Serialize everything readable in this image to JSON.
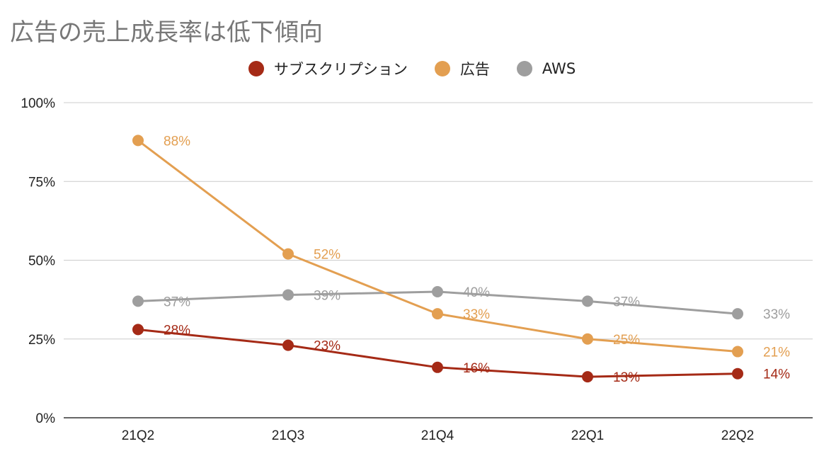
{
  "chart_data": {
    "type": "line",
    "title": "広告の売上成長率は低下傾向",
    "categories": [
      "21Q2",
      "21Q3",
      "21Q4",
      "22Q1",
      "22Q2"
    ],
    "ylim": [
      0,
      100
    ],
    "yticks": [
      "0%",
      "25%",
      "50%",
      "75%",
      "100%"
    ],
    "grid": true,
    "legend_position": "top-center",
    "series": [
      {
        "name": "サブスクリプション",
        "color": "#a52a16",
        "values": [
          28,
          23,
          16,
          13,
          14
        ],
        "labels": [
          "28%",
          "23%",
          "16%",
          "13%",
          "14%"
        ]
      },
      {
        "name": "広告",
        "color": "#e39f51",
        "values": [
          88,
          52,
          33,
          25,
          21
        ],
        "labels": [
          "88%",
          "52%",
          "33%",
          "25%",
          "21%"
        ]
      },
      {
        "name": "AWS",
        "color": "#9e9e9e",
        "values": [
          37,
          39,
          40,
          37,
          33
        ],
        "labels": [
          "37%",
          "39%",
          "40%",
          "37%",
          "33%"
        ]
      }
    ]
  }
}
